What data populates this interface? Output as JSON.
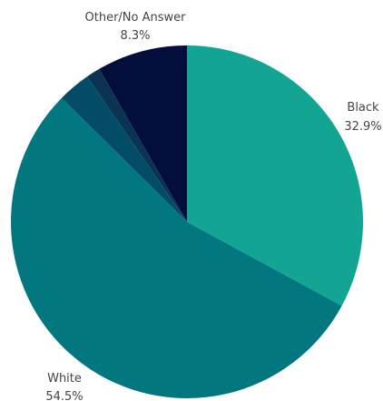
{
  "chart_data": {
    "type": "pie",
    "title": "",
    "slices": [
      {
        "label": "Black",
        "percent_text": "32.9%",
        "value": 32.9,
        "color": "#12a594"
      },
      {
        "label": "White",
        "percent_text": "54.5%",
        "value": 54.5,
        "color": "#03777f"
      },
      {
        "label": "",
        "percent_text": "",
        "value": 3.0,
        "color": "#024c68"
      },
      {
        "label": "",
        "percent_text": "",
        "value": 1.3,
        "color": "#0b3453"
      },
      {
        "label": "Other/No Answer",
        "percent_text": "8.3%",
        "value": 8.3,
        "color": "#040e3c"
      }
    ],
    "start_angle_deg": 0,
    "direction": "clockwise",
    "legend": "none"
  }
}
